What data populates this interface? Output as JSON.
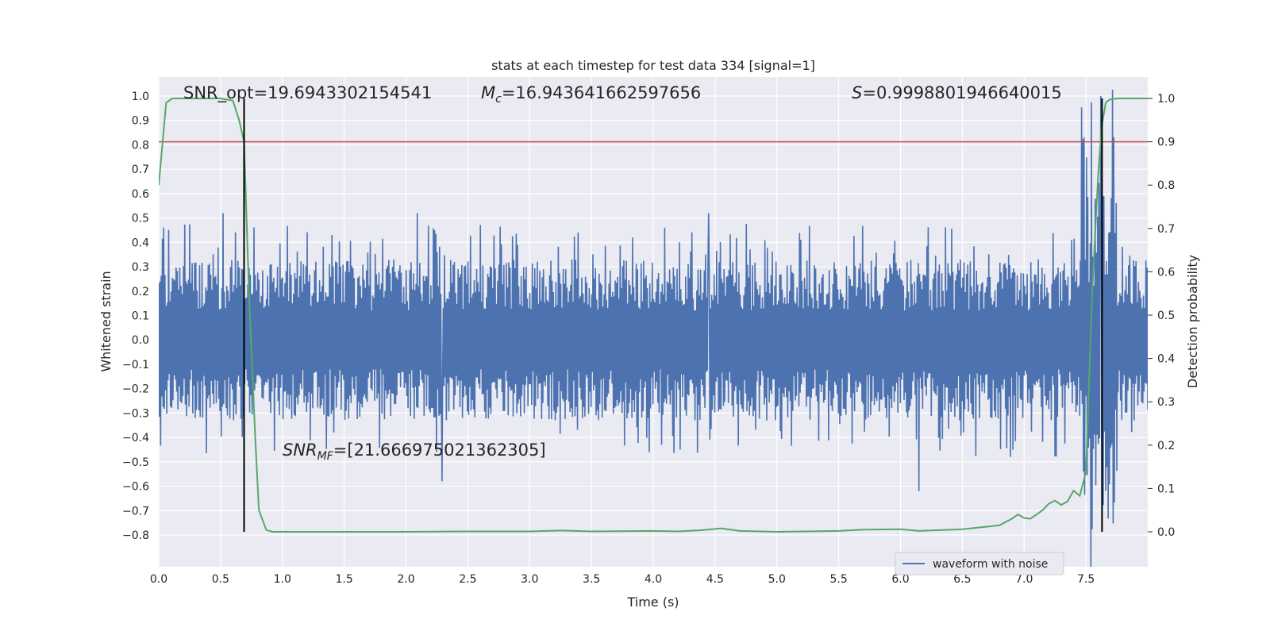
{
  "chart_data": {
    "type": "line",
    "title": "stats at each timestep for test data 334 [signal=1]",
    "xlabel": "Time (s)",
    "ylabel_left": "Whitened strain",
    "ylabel_right": "Detection probability",
    "xlim": [
      0.0,
      8.0
    ],
    "ylim_left": [
      -0.85,
      1.07
    ],
    "ylim_right": [
      -0.05,
      1.0
    ],
    "x_ticks": [
      "0.0",
      "0.5",
      "1.0",
      "1.5",
      "2.0",
      "2.5",
      "3.0",
      "3.5",
      "4.0",
      "4.5",
      "5.0",
      "5.5",
      "6.0",
      "6.5",
      "7.0",
      "7.5"
    ],
    "y_ticks_left": [
      "1.0",
      "0.9",
      "0.8",
      "0.7",
      "0.6",
      "0.5",
      "0.4",
      "0.3",
      "0.2",
      "0.1",
      "0.0",
      "−0.1",
      "−0.2",
      "−0.3",
      "−0.4",
      "−0.5",
      "−0.6",
      "−0.7",
      "−0.8"
    ],
    "y_ticks_right": [
      "1.0",
      "0.9",
      "0.8",
      "0.7",
      "0.6",
      "0.5",
      "0.4",
      "0.3",
      "0.2",
      "0.1",
      "0.0"
    ],
    "grid": true,
    "legend_placement": "bottom-right",
    "legend": [
      "waveform with noise"
    ],
    "annotations": {
      "snr_opt": "SNR_opt=19.6943302154541",
      "mc_prefix": "M",
      "mc_sub": "c",
      "mc_value": "=16.943641662597656",
      "s_prefix": "S",
      "s_value": "=0.9998801946640015",
      "snr_mf_prefix": "SNR",
      "snr_mf_sub": "MF",
      "snr_mf_value": "=[21.666975021362305]"
    },
    "threshold_right": 0.9,
    "vertical_lines_x": [
      0.69,
      7.63
    ],
    "series": [
      {
        "name": "waveform with noise",
        "color": "#4c72b0",
        "x_range": [
          0.0,
          8.0
        ],
        "samples": 1600,
        "envelope_typical": [
          -0.3,
          0.3
        ],
        "notable_peaks": [
          {
            "x": 0.52,
            "y": 0.52
          },
          {
            "x": 2.09,
            "y": 0.52
          },
          {
            "x": 4.45,
            "y": 0.52
          },
          {
            "x": 2.29,
            "y": -0.58
          },
          {
            "x": 6.15,
            "y": -0.62
          },
          {
            "x": 7.62,
            "y": 1.0
          },
          {
            "x": 7.63,
            "y": -0.78
          }
        ]
      },
      {
        "color": "#55a868",
        "axis": "right",
        "x": [
          0.0,
          0.06,
          0.11,
          0.2,
          0.3,
          0.4,
          0.5,
          0.6,
          0.65,
          0.69,
          0.73,
          0.78,
          0.81,
          0.87,
          0.92,
          1.0,
          1.5,
          2.0,
          2.5,
          3.0,
          3.25,
          3.5,
          4.0,
          4.2,
          4.4,
          4.55,
          4.7,
          5.0,
          5.5,
          5.7,
          6.0,
          6.15,
          6.5,
          6.7,
          6.8,
          6.9,
          6.95,
          7.0,
          7.05,
          7.1,
          7.15,
          7.2,
          7.25,
          7.3,
          7.35,
          7.4,
          7.45,
          7.5,
          7.55,
          7.6,
          7.63,
          7.66,
          7.69,
          7.75,
          7.85,
          8.0
        ],
        "y": [
          0.8,
          0.99,
          1.0,
          1.0,
          1.0,
          1.0,
          1.0,
          0.995,
          0.95,
          0.9,
          0.55,
          0.22,
          0.05,
          0.004,
          0.0,
          0.0,
          0.0,
          0.0,
          0.001,
          0.001,
          0.003,
          0.001,
          0.002,
          0.001,
          0.004,
          0.008,
          0.002,
          0.0,
          0.002,
          0.005,
          0.006,
          0.002,
          0.006,
          0.012,
          0.015,
          0.03,
          0.04,
          0.032,
          0.03,
          0.04,
          0.05,
          0.065,
          0.072,
          0.062,
          0.07,
          0.095,
          0.083,
          0.138,
          0.55,
          0.83,
          0.94,
          0.99,
          0.997,
          1.0,
          1.0,
          1.0
        ]
      }
    ]
  }
}
